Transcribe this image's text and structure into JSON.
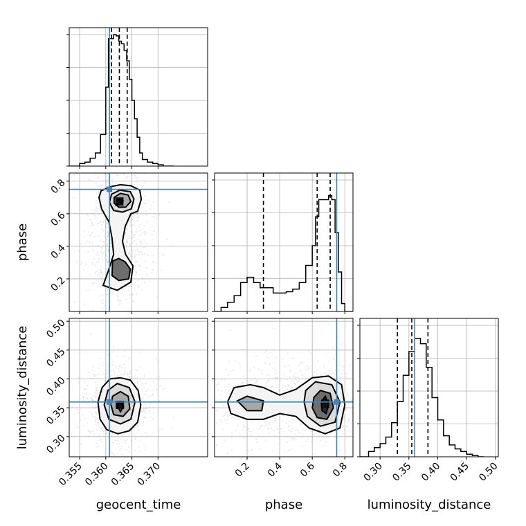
{
  "chart_data": {
    "type": "corner",
    "parameters": [
      "geocent_time",
      "phase",
      "luminosity_distance"
    ],
    "axis_labels": {
      "geocent_time": "geocent_time",
      "phase": "phase",
      "luminosity_distance": "luminosity_distance"
    },
    "ranges": {
      "geocent_time": [
        0.353,
        0.3795
      ],
      "phase": [
        0.0,
        0.85
      ],
      "luminosity_distance": [
        0.265,
        0.505
      ]
    },
    "ticks": {
      "geocent_time": [
        0.355,
        0.36,
        0.365,
        0.37
      ],
      "phase": [
        0.2,
        0.4,
        0.6,
        0.8
      ],
      "luminosity_distance": [
        0.3,
        0.35,
        0.4,
        0.45,
        0.5
      ]
    },
    "tick_labels": {
      "geocent_time": [
        "0.355",
        "0.360",
        "0.365",
        "0.370"
      ],
      "phase": [
        "0.2",
        "0.4",
        "0.6",
        "0.8"
      ],
      "luminosity_distance": [
        "0.30",
        "0.35",
        "0.40",
        "0.45",
        "0.50"
      ]
    },
    "truths": {
      "geocent_time": 0.3607,
      "phase": 0.75,
      "luminosity_distance": 0.36
    },
    "quantiles": {
      "geocent_time": [
        0.3611,
        0.3626,
        0.3641
      ],
      "phase": [
        0.3,
        0.63,
        0.71
      ],
      "luminosity_distance": [
        0.33,
        0.355,
        0.383
      ]
    },
    "marginals": {
      "geocent_time": {
        "edges": [
          0.353,
          0.354,
          0.355,
          0.356,
          0.357,
          0.358,
          0.359,
          0.36,
          0.3605,
          0.361,
          0.3615,
          0.362,
          0.3625,
          0.363,
          0.3635,
          0.364,
          0.3645,
          0.365,
          0.3655,
          0.366,
          0.3665,
          0.367,
          0.368,
          0.369,
          0.37,
          0.371,
          0.372,
          0.373
        ],
        "counts": [
          0.0,
          0.0,
          0.02,
          0.03,
          0.06,
          0.1,
          0.24,
          0.6,
          0.97,
          0.97,
          1.0,
          0.99,
          0.95,
          0.93,
          0.88,
          0.8,
          0.66,
          0.5,
          0.36,
          0.22,
          0.1,
          0.05,
          0.03,
          0.02,
          0.01,
          0.0,
          0.0
        ]
      },
      "phase": {
        "edges": [
          0.0,
          0.04,
          0.08,
          0.12,
          0.16,
          0.2,
          0.24,
          0.28,
          0.32,
          0.36,
          0.4,
          0.44,
          0.48,
          0.52,
          0.56,
          0.6,
          0.62,
          0.64,
          0.66,
          0.68,
          0.7,
          0.72,
          0.74,
          0.76,
          0.78,
          0.8,
          0.85
        ],
        "counts": [
          0.0,
          0.03,
          0.07,
          0.12,
          0.22,
          0.26,
          0.22,
          0.18,
          0.18,
          0.14,
          0.14,
          0.15,
          0.17,
          0.22,
          0.35,
          0.5,
          0.72,
          0.85,
          0.85,
          0.85,
          0.88,
          0.85,
          0.6,
          0.3,
          0.06,
          0.0
        ]
      },
      "luminosity_distance": {
        "edges": [
          0.265,
          0.28,
          0.29,
          0.3,
          0.31,
          0.32,
          0.33,
          0.34,
          0.35,
          0.36,
          0.37,
          0.38,
          0.39,
          0.4,
          0.41,
          0.42,
          0.43,
          0.44,
          0.45,
          0.46,
          0.47,
          0.48
        ],
        "counts": [
          0.0,
          0.04,
          0.07,
          0.1,
          0.15,
          0.26,
          0.42,
          0.62,
          0.8,
          0.9,
          0.86,
          0.68,
          0.45,
          0.28,
          0.16,
          0.09,
          0.06,
          0.04,
          0.02,
          0.01,
          0.0
        ]
      }
    },
    "contours_2d": [
      {
        "x": "geocent_time",
        "y": "phase",
        "levels": [
          [
            [
              0.3591,
              0.74
            ],
            [
              0.3608,
              0.765
            ],
            [
              0.3628,
              0.778
            ],
            [
              0.3648,
              0.772
            ],
            [
              0.3665,
              0.745
            ],
            [
              0.3668,
              0.69
            ],
            [
              0.3661,
              0.615
            ],
            [
              0.3648,
              0.6
            ],
            [
              0.3637,
              0.52
            ],
            [
              0.3632,
              0.43
            ],
            [
              0.3638,
              0.35
            ],
            [
              0.3652,
              0.28
            ],
            [
              0.3648,
              0.18
            ],
            [
              0.3622,
              0.13
            ],
            [
              0.3595,
              0.16
            ],
            [
              0.3605,
              0.25
            ],
            [
              0.3615,
              0.35
            ],
            [
              0.3612,
              0.45
            ],
            [
              0.3606,
              0.55
            ],
            [
              0.3592,
              0.63
            ],
            [
              0.3587,
              0.7
            ]
          ],
          [
            [
              0.3611,
              0.72
            ],
            [
              0.3627,
              0.745
            ],
            [
              0.3647,
              0.735
            ],
            [
              0.3654,
              0.69
            ],
            [
              0.3649,
              0.63
            ],
            [
              0.3632,
              0.61
            ],
            [
              0.3615,
              0.62
            ],
            [
              0.3607,
              0.67
            ]
          ],
          [
            [
              0.3616,
              0.7
            ],
            [
              0.3628,
              0.725
            ],
            [
              0.3643,
              0.715
            ],
            [
              0.3648,
              0.675
            ],
            [
              0.3638,
              0.64
            ],
            [
              0.3625,
              0.64
            ],
            [
              0.3616,
              0.665
            ]
          ],
          [
            [
              0.3613,
              0.31
            ],
            [
              0.3625,
              0.325
            ],
            [
              0.3637,
              0.305
            ],
            [
              0.3647,
              0.26
            ],
            [
              0.3644,
              0.2
            ],
            [
              0.3625,
              0.19
            ],
            [
              0.3612,
              0.22
            ]
          ],
          [
            [
              0.3622,
              0.68
            ],
            [
              0.3628,
              0.69
            ],
            [
              0.3633,
              0.68
            ],
            [
              0.3628,
              0.665
            ]
          ]
        ],
        "density_center": [
          0.3626,
          0.675
        ]
      },
      {
        "x": "geocent_time",
        "y": "luminosity_distance",
        "levels": [
          [
            [
              0.3593,
              0.385
            ],
            [
              0.3608,
              0.4
            ],
            [
              0.3628,
              0.402
            ],
            [
              0.3647,
              0.398
            ],
            [
              0.3662,
              0.38
            ],
            [
              0.3667,
              0.355
            ],
            [
              0.3661,
              0.325
            ],
            [
              0.3645,
              0.31
            ],
            [
              0.3623,
              0.305
            ],
            [
              0.3602,
              0.312
            ],
            [
              0.3589,
              0.33
            ],
            [
              0.3585,
              0.36
            ]
          ],
          [
            [
              0.3604,
              0.38
            ],
            [
              0.3622,
              0.392
            ],
            [
              0.3645,
              0.385
            ],
            [
              0.3656,
              0.36
            ],
            [
              0.3648,
              0.33
            ],
            [
              0.3628,
              0.322
            ],
            [
              0.3606,
              0.33
            ],
            [
              0.3597,
              0.355
            ]
          ],
          [
            [
              0.3613,
              0.37
            ],
            [
              0.3628,
              0.378
            ],
            [
              0.3643,
              0.37
            ],
            [
              0.3646,
              0.348
            ],
            [
              0.3633,
              0.335
            ],
            [
              0.3615,
              0.338
            ],
            [
              0.361,
              0.355
            ]
          ],
          [
            [
              0.3621,
              0.355
            ],
            [
              0.3628,
              0.36
            ],
            [
              0.3634,
              0.352
            ],
            [
              0.3628,
              0.343
            ]
          ]
        ],
        "density_center": [
          0.3627,
          0.355
        ]
      },
      {
        "x": "phase",
        "y": "luminosity_distance",
        "levels": [
          [
            [
              0.08,
              0.36
            ],
            [
              0.12,
              0.385
            ],
            [
              0.22,
              0.39
            ],
            [
              0.3,
              0.385
            ],
            [
              0.4,
              0.372
            ],
            [
              0.5,
              0.382
            ],
            [
              0.6,
              0.402
            ],
            [
              0.7,
              0.405
            ],
            [
              0.78,
              0.39
            ],
            [
              0.8,
              0.355
            ],
            [
              0.77,
              0.315
            ],
            [
              0.68,
              0.305
            ],
            [
              0.58,
              0.315
            ],
            [
              0.5,
              0.335
            ],
            [
              0.4,
              0.34
            ],
            [
              0.3,
              0.33
            ],
            [
              0.2,
              0.33
            ],
            [
              0.1,
              0.34
            ]
          ],
          [
            [
              0.56,
              0.38
            ],
            [
              0.62,
              0.395
            ],
            [
              0.72,
              0.39
            ],
            [
              0.77,
              0.36
            ],
            [
              0.74,
              0.325
            ],
            [
              0.65,
              0.318
            ],
            [
              0.57,
              0.335
            ],
            [
              0.55,
              0.36
            ]
          ],
          [
            [
              0.14,
              0.362
            ],
            [
              0.2,
              0.37
            ],
            [
              0.3,
              0.362
            ],
            [
              0.29,
              0.345
            ],
            [
              0.2,
              0.345
            ]
          ],
          [
            [
              0.61,
              0.368
            ],
            [
              0.65,
              0.38
            ],
            [
              0.71,
              0.375
            ],
            [
              0.73,
              0.35
            ],
            [
              0.69,
              0.33
            ],
            [
              0.63,
              0.333
            ],
            [
              0.6,
              0.35
            ]
          ],
          [
            [
              0.655,
              0.36
            ],
            [
              0.68,
              0.37
            ],
            [
              0.7,
              0.355
            ],
            [
              0.685,
              0.34
            ],
            [
              0.66,
              0.345
            ]
          ]
        ],
        "density_center": [
          0.68,
          0.357
        ]
      }
    ]
  }
}
